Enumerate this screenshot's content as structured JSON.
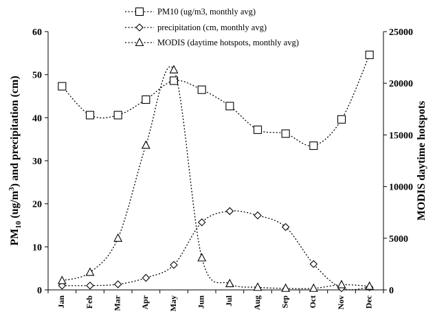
{
  "chart_data": {
    "type": "line",
    "categories": [
      "Jan",
      "Feb",
      "Mar",
      "Apr",
      "May",
      "Jun",
      "Jul",
      "Aug",
      "Sep",
      "Oct",
      "Nov",
      "Dec"
    ],
    "y_left": {
      "label_main": "PM",
      "label_sub": "10",
      "label_mid": " (ug/m",
      "label_sup": "3",
      "label_end": ") and precipitation (cm)",
      "ylim": [
        0,
        60
      ],
      "ticks": [
        "0",
        "10",
        "20",
        "30",
        "40",
        "50",
        "60"
      ]
    },
    "y_right": {
      "label": "MODIS daytime hotspots",
      "ylim": [
        0,
        25000
      ],
      "ticks": [
        "0",
        "5000",
        "10000",
        "15000",
        "20000",
        "25000"
      ]
    },
    "series": [
      {
        "name": "PM10 (ug/m3, monthly avg)",
        "marker": "square",
        "axis": "left",
        "values": [
          47.3,
          40.6,
          40.6,
          44.2,
          48.6,
          46.5,
          42.7,
          37.2,
          36.3,
          33.5,
          39.6,
          54.6
        ]
      },
      {
        "name": "precipitation (cm, monthly avg)",
        "marker": "diamond",
        "axis": "left",
        "values": [
          1.0,
          1.0,
          1.3,
          2.8,
          5.8,
          15.7,
          18.3,
          17.3,
          14.6,
          6.0,
          0.4,
          0.6
        ]
      },
      {
        "name": "MODIS (daytime hotspots, monthly avg)",
        "marker": "triangle",
        "axis": "right",
        "values": [
          900,
          1700,
          5000,
          14000,
          21300,
          3100,
          600,
          250,
          150,
          150,
          500,
          350
        ]
      }
    ],
    "legend_position": "top-center",
    "grid": false
  }
}
